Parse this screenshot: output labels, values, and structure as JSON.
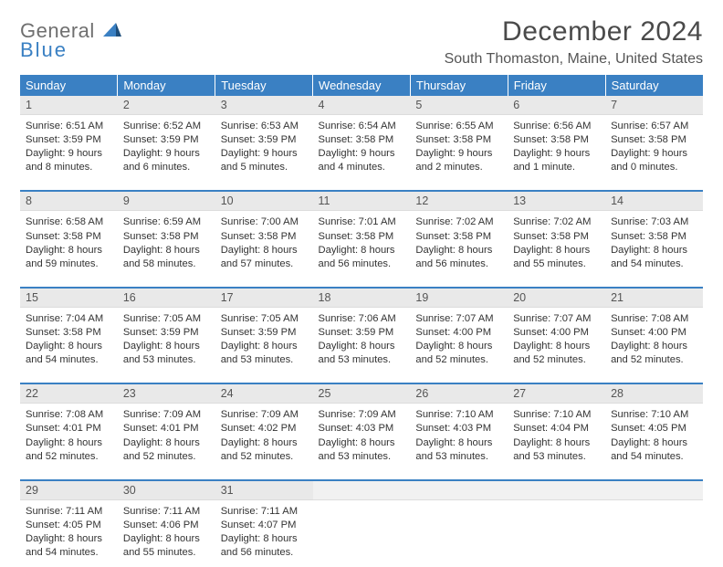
{
  "brand": {
    "line1": "General",
    "line2": "Blue"
  },
  "title": {
    "month": "December 2024",
    "location": "South Thomaston, Maine, United States"
  },
  "colors": {
    "accent": "#3a80c3",
    "header_bg": "#3a80c3",
    "daynum_bg": "#e9e9e9",
    "text": "#333333"
  },
  "weekdays": [
    "Sunday",
    "Monday",
    "Tuesday",
    "Wednesday",
    "Thursday",
    "Friday",
    "Saturday"
  ],
  "weeks": [
    [
      {
        "n": "1",
        "sr": "Sunrise: 6:51 AM",
        "ss": "Sunset: 3:59 PM",
        "dl": "Daylight: 9 hours and 8 minutes."
      },
      {
        "n": "2",
        "sr": "Sunrise: 6:52 AM",
        "ss": "Sunset: 3:59 PM",
        "dl": "Daylight: 9 hours and 6 minutes."
      },
      {
        "n": "3",
        "sr": "Sunrise: 6:53 AM",
        "ss": "Sunset: 3:59 PM",
        "dl": "Daylight: 9 hours and 5 minutes."
      },
      {
        "n": "4",
        "sr": "Sunrise: 6:54 AM",
        "ss": "Sunset: 3:58 PM",
        "dl": "Daylight: 9 hours and 4 minutes."
      },
      {
        "n": "5",
        "sr": "Sunrise: 6:55 AM",
        "ss": "Sunset: 3:58 PM",
        "dl": "Daylight: 9 hours and 2 minutes."
      },
      {
        "n": "6",
        "sr": "Sunrise: 6:56 AM",
        "ss": "Sunset: 3:58 PM",
        "dl": "Daylight: 9 hours and 1 minute."
      },
      {
        "n": "7",
        "sr": "Sunrise: 6:57 AM",
        "ss": "Sunset: 3:58 PM",
        "dl": "Daylight: 9 hours and 0 minutes."
      }
    ],
    [
      {
        "n": "8",
        "sr": "Sunrise: 6:58 AM",
        "ss": "Sunset: 3:58 PM",
        "dl": "Daylight: 8 hours and 59 minutes."
      },
      {
        "n": "9",
        "sr": "Sunrise: 6:59 AM",
        "ss": "Sunset: 3:58 PM",
        "dl": "Daylight: 8 hours and 58 minutes."
      },
      {
        "n": "10",
        "sr": "Sunrise: 7:00 AM",
        "ss": "Sunset: 3:58 PM",
        "dl": "Daylight: 8 hours and 57 minutes."
      },
      {
        "n": "11",
        "sr": "Sunrise: 7:01 AM",
        "ss": "Sunset: 3:58 PM",
        "dl": "Daylight: 8 hours and 56 minutes."
      },
      {
        "n": "12",
        "sr": "Sunrise: 7:02 AM",
        "ss": "Sunset: 3:58 PM",
        "dl": "Daylight: 8 hours and 56 minutes."
      },
      {
        "n": "13",
        "sr": "Sunrise: 7:02 AM",
        "ss": "Sunset: 3:58 PM",
        "dl": "Daylight: 8 hours and 55 minutes."
      },
      {
        "n": "14",
        "sr": "Sunrise: 7:03 AM",
        "ss": "Sunset: 3:58 PM",
        "dl": "Daylight: 8 hours and 54 minutes."
      }
    ],
    [
      {
        "n": "15",
        "sr": "Sunrise: 7:04 AM",
        "ss": "Sunset: 3:58 PM",
        "dl": "Daylight: 8 hours and 54 minutes."
      },
      {
        "n": "16",
        "sr": "Sunrise: 7:05 AM",
        "ss": "Sunset: 3:59 PM",
        "dl": "Daylight: 8 hours and 53 minutes."
      },
      {
        "n": "17",
        "sr": "Sunrise: 7:05 AM",
        "ss": "Sunset: 3:59 PM",
        "dl": "Daylight: 8 hours and 53 minutes."
      },
      {
        "n": "18",
        "sr": "Sunrise: 7:06 AM",
        "ss": "Sunset: 3:59 PM",
        "dl": "Daylight: 8 hours and 53 minutes."
      },
      {
        "n": "19",
        "sr": "Sunrise: 7:07 AM",
        "ss": "Sunset: 4:00 PM",
        "dl": "Daylight: 8 hours and 52 minutes."
      },
      {
        "n": "20",
        "sr": "Sunrise: 7:07 AM",
        "ss": "Sunset: 4:00 PM",
        "dl": "Daylight: 8 hours and 52 minutes."
      },
      {
        "n": "21",
        "sr": "Sunrise: 7:08 AM",
        "ss": "Sunset: 4:00 PM",
        "dl": "Daylight: 8 hours and 52 minutes."
      }
    ],
    [
      {
        "n": "22",
        "sr": "Sunrise: 7:08 AM",
        "ss": "Sunset: 4:01 PM",
        "dl": "Daylight: 8 hours and 52 minutes."
      },
      {
        "n": "23",
        "sr": "Sunrise: 7:09 AM",
        "ss": "Sunset: 4:01 PM",
        "dl": "Daylight: 8 hours and 52 minutes."
      },
      {
        "n": "24",
        "sr": "Sunrise: 7:09 AM",
        "ss": "Sunset: 4:02 PM",
        "dl": "Daylight: 8 hours and 52 minutes."
      },
      {
        "n": "25",
        "sr": "Sunrise: 7:09 AM",
        "ss": "Sunset: 4:03 PM",
        "dl": "Daylight: 8 hours and 53 minutes."
      },
      {
        "n": "26",
        "sr": "Sunrise: 7:10 AM",
        "ss": "Sunset: 4:03 PM",
        "dl": "Daylight: 8 hours and 53 minutes."
      },
      {
        "n": "27",
        "sr": "Sunrise: 7:10 AM",
        "ss": "Sunset: 4:04 PM",
        "dl": "Daylight: 8 hours and 53 minutes."
      },
      {
        "n": "28",
        "sr": "Sunrise: 7:10 AM",
        "ss": "Sunset: 4:05 PM",
        "dl": "Daylight: 8 hours and 54 minutes."
      }
    ],
    [
      {
        "n": "29",
        "sr": "Sunrise: 7:11 AM",
        "ss": "Sunset: 4:05 PM",
        "dl": "Daylight: 8 hours and 54 minutes."
      },
      {
        "n": "30",
        "sr": "Sunrise: 7:11 AM",
        "ss": "Sunset: 4:06 PM",
        "dl": "Daylight: 8 hours and 55 minutes."
      },
      {
        "n": "31",
        "sr": "Sunrise: 7:11 AM",
        "ss": "Sunset: 4:07 PM",
        "dl": "Daylight: 8 hours and 56 minutes."
      },
      {
        "empty": true
      },
      {
        "empty": true
      },
      {
        "empty": true
      },
      {
        "empty": true
      }
    ]
  ]
}
